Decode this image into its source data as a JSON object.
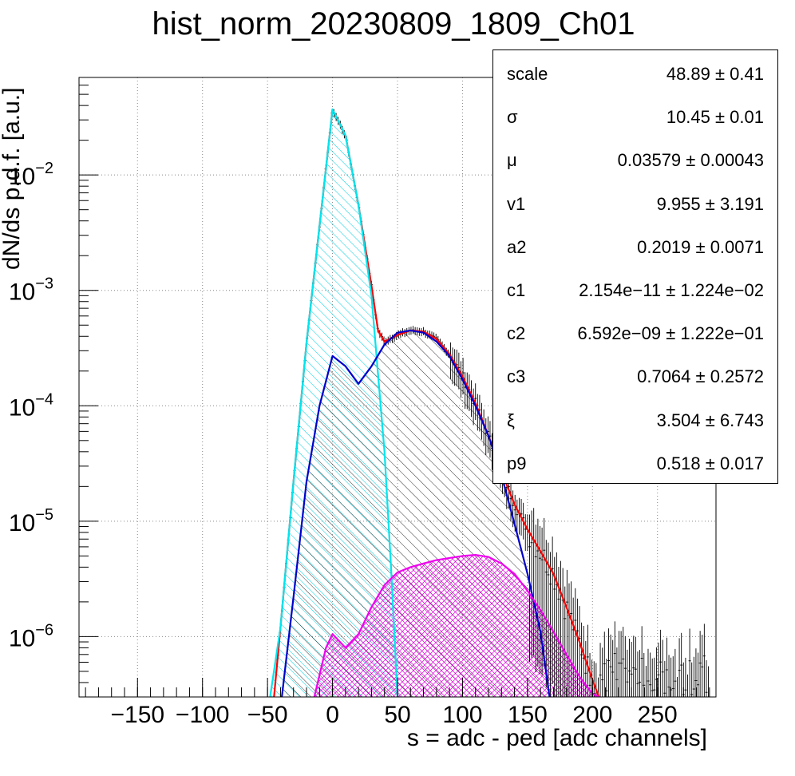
{
  "chart_data": {
    "type": "line",
    "title": "hist_norm_20230809_1809_Ch01",
    "xlabel": "s = adc - ped [adc channels]",
    "ylabel": "dN/ds p.d.f. [a.u.]",
    "xlim": [
      -195,
      295
    ],
    "ylim": [
      3e-07,
      0.07
    ],
    "yscale": "log",
    "grid": true,
    "x_ticks": [
      "−150",
      "−100",
      "−50",
      "0",
      "50",
      "100",
      "150",
      "200",
      "250"
    ],
    "y_ticks": [
      {
        "base": "10",
        "exp": "−2",
        "value": 0.01
      },
      {
        "base": "10",
        "exp": "−3",
        "value": 0.001
      },
      {
        "base": "10",
        "exp": "−4",
        "value": 0.0001
      },
      {
        "base": "10",
        "exp": "−5",
        "value": 1e-05
      },
      {
        "base": "10",
        "exp": "−6",
        "value": 1e-06
      }
    ],
    "series": [
      {
        "color": "#ff0000",
        "x": [
          -45,
          -40,
          -30,
          -20,
          -10,
          0,
          10,
          20,
          30,
          35,
          40,
          50,
          60,
          70,
          80,
          90,
          100,
          110,
          120,
          130,
          140,
          150,
          160,
          170,
          180,
          190,
          200,
          205
        ],
        "y": [
          3e-07,
          1.2e-06,
          2.2e-05,
          0.00035,
          0.0036,
          0.037,
          0.022,
          0.0055,
          0.0011,
          0.00045,
          0.00036,
          0.00041,
          0.00045,
          0.00044,
          0.00038,
          0.00028,
          0.00018,
          0.000105,
          5.5e-05,
          2.7e-05,
          1.4e-05,
          8.5e-06,
          5.5e-06,
          3.5e-06,
          1.8e-06,
          9e-07,
          4.2e-07,
          3e-07
        ]
      },
      {
        "color": "#00e5ee",
        "x": [
          -48,
          -40,
          -30,
          -20,
          -10,
          0,
          10,
          20,
          30,
          40,
          45,
          50
        ],
        "y": [
          3e-07,
          1.2e-06,
          2.2e-05,
          0.00035,
          0.0036,
          0.037,
          0.022,
          0.0055,
          0.0009,
          4e-05,
          4e-06,
          3e-07
        ]
      },
      {
        "color": "#0000cc",
        "x": [
          -39,
          -30,
          -20,
          -10,
          0,
          10,
          20,
          30,
          40,
          50,
          60,
          70,
          80,
          90,
          100,
          110,
          120,
          130,
          140,
          150,
          160,
          167
        ],
        "y": [
          3e-07,
          2.2e-06,
          2.2e-05,
          0.0001,
          0.00027,
          0.00022,
          0.000155,
          0.00022,
          0.00034,
          0.00043,
          0.00045,
          0.00043,
          0.00036,
          0.00027,
          0.00017,
          0.0001,
          5.5e-05,
          2.5e-05,
          9.5e-06,
          3.5e-06,
          1.1e-06,
          3e-07
        ]
      },
      {
        "color": "#ee00ee",
        "x": [
          -14,
          -5,
          0,
          10,
          20,
          30,
          40,
          50,
          60,
          70,
          80,
          90,
          100,
          110,
          120,
          130,
          140,
          150,
          160,
          170,
          180,
          190,
          200,
          205
        ],
        "y": [
          3e-07,
          8e-07,
          1.05e-06,
          8e-07,
          1.05e-06,
          1.8e-06,
          2.8e-06,
          3.6e-06,
          4e-06,
          4.3e-06,
          4.6e-06,
          4.8e-06,
          5e-06,
          5.1e-06,
          4.9e-06,
          4.3e-06,
          3.5e-06,
          2.5e-06,
          1.7e-06,
          1.1e-06,
          7e-07,
          4.5e-07,
          3.2e-07,
          3e-07
        ]
      }
    ]
  },
  "stats": [
    {
      "name": "scale",
      "value": "48.89 ± 0.41"
    },
    {
      "name": "σ",
      "value": "10.45 ± 0.01"
    },
    {
      "name": "μ",
      "value": "0.03579 ± 0.00043"
    },
    {
      "name": "v1",
      "value": "9.955 ± 3.191"
    },
    {
      "name": "a2",
      "value": "0.2019 ± 0.0071"
    },
    {
      "name": "c1",
      "value": "2.154e−11 ± 1.224e−02"
    },
    {
      "name": "c2",
      "value": "6.592e−09 ± 1.222e−01"
    },
    {
      "name": "c3",
      "value": "0.7064 ± 0.2572"
    },
    {
      "name": "ξ",
      "value": "3.504 ± 6.743"
    },
    {
      "name": "p9",
      "value": "0.518 ± 0.017"
    }
  ]
}
